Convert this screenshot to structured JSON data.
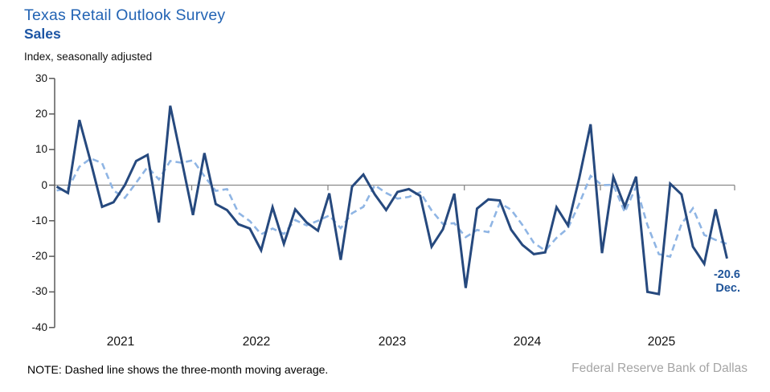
{
  "header": {
    "title": "Texas Retail Outlook Survey",
    "subtitle": "Sales",
    "axis_note": "Index, seasonally adjusted"
  },
  "footer": {
    "note": "NOTE: Dashed line shows the three-month moving average.",
    "source": "Federal Reserve Bank of Dallas"
  },
  "end_label": {
    "value": "-20.6",
    "month": "Dec."
  },
  "colors": {
    "title": "#2364B4",
    "subtitle": "#1C55A4",
    "solid_line": "#26497E",
    "dashed_line": "#8FB5E4",
    "y_axis": "#5a5a5a",
    "zero_line": "#8a8a8a",
    "end_label": "#1F5499",
    "source_text": "#A5A5A5"
  },
  "chart_data": {
    "type": "line",
    "title": "Texas Retail Outlook Survey - Sales",
    "ylabel": "Index, seasonally adjusted",
    "ylim": [
      -40,
      30
    ],
    "yticks": [
      30,
      20,
      10,
      0,
      -10,
      -20,
      -30,
      -40
    ],
    "grid": false,
    "legend": "none (dashed line explained in footnote)",
    "x_unit": "month",
    "x_start": "2021-01",
    "x_end": "2025-12",
    "x_years": [
      "2021",
      "2022",
      "2023",
      "2024",
      "2025"
    ],
    "last_point_label": "-20.6 Dec.",
    "series": [
      {
        "name": "Sales index, monthly",
        "style": "solid",
        "values": [
          -0.4,
          -2.2,
          18.3,
          6.5,
          -6.1,
          -4.8,
          0.0,
          6.8,
          8.5,
          -10.5,
          22.3,
          7.0,
          -8.4,
          9.0,
          -5.3,
          -7.0,
          -11.0,
          -12.2,
          -18.3,
          -6.2,
          -16.5,
          -6.8,
          -10.5,
          -12.8,
          -2.3,
          -21.0,
          -0.4,
          3.0,
          -2.6,
          -7.0,
          -1.9,
          -1.1,
          -3.0,
          -17.3,
          -12.4,
          -2.4,
          -28.9,
          -6.6,
          -4.0,
          -4.3,
          -12.5,
          -16.8,
          -19.4,
          -18.9,
          -6.2,
          -11.3,
          2.0,
          17.1,
          -19.1,
          2.3,
          -6.0,
          2.4,
          -30.0,
          -30.6,
          0.4,
          -2.6,
          -17.3,
          -22.1,
          -6.8,
          -20.6
        ]
      },
      {
        "name": "Three-month moving average",
        "style": "dashed",
        "values": [
          -1.5,
          -1.0,
          5.2,
          7.5,
          6.2,
          -1.5,
          -3.6,
          0.7,
          5.1,
          1.6,
          6.8,
          6.3,
          7.0,
          2.5,
          -1.6,
          -1.1,
          -7.8,
          -10.1,
          -13.8,
          -12.2,
          -13.7,
          -9.8,
          -11.3,
          -10.0,
          -8.5,
          -12.1,
          -7.9,
          -6.1,
          0.0,
          -2.2,
          -3.8,
          -3.3,
          -2.0,
          -7.1,
          -10.9,
          -10.7,
          -14.6,
          -12.6,
          -13.2,
          -5.0,
          -6.9,
          -11.2,
          -16.2,
          -18.4,
          -14.8,
          -12.1,
          -5.2,
          2.6,
          0.0,
          0.1,
          -7.6,
          -0.4,
          -11.2,
          -19.4,
          -20.1,
          -10.9,
          -6.5,
          -14.0,
          -15.4,
          -16.5
        ]
      }
    ]
  }
}
